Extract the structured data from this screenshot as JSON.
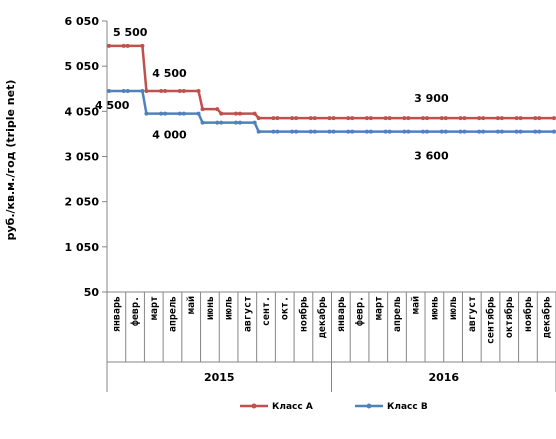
{
  "chart_data": {
    "type": "line",
    "ylabel": "руб./кв.м./год (triple net)",
    "ylim": [
      50,
      6050
    ],
    "yticks": [
      "6 050",
      "5 050",
      "4 050",
      "3 050",
      "2 050",
      "1 050",
      "50"
    ],
    "yticks_values": [
      6050,
      5050,
      4050,
      3050,
      2050,
      1050,
      50
    ],
    "categories": [
      "январь",
      "февр.",
      "март",
      "апрель",
      "май",
      "июнь",
      "июль",
      "август",
      "сент.",
      "окт.",
      "ноябрь",
      "декабрь",
      "январь",
      "февр.",
      "март",
      "апрель",
      "май",
      "июнь",
      "июль",
      "август",
      "сентябрь",
      "октябрь",
      "ноябрь",
      "декабрь"
    ],
    "years": [
      {
        "label": "2015",
        "start": 0,
        "end": 11
      },
      {
        "label": "2016",
        "start": 12,
        "end": 23
      }
    ],
    "series": [
      {
        "name": "Класс А",
        "color": "#c0504d",
        "values": [
          5500,
          5500,
          4500,
          4500,
          4500,
          4100,
          4000,
          4000,
          3900,
          3900,
          3900,
          3900,
          3900,
          3900,
          3900,
          3900,
          3900,
          3900,
          3900,
          3900,
          3900,
          3900,
          3900,
          3900
        ]
      },
      {
        "name": "Класс В",
        "color": "#4f81bd",
        "values": [
          4500,
          4500,
          4000,
          4000,
          4000,
          3800,
          3800,
          3800,
          3600,
          3600,
          3600,
          3600,
          3600,
          3600,
          3600,
          3600,
          3600,
          3600,
          3600,
          3600,
          3600,
          3600,
          3600,
          3600
        ]
      }
    ],
    "data_labels": [
      {
        "series": 0,
        "index": 0,
        "text": "5 500"
      },
      {
        "series": 0,
        "index": 3,
        "text": "4 500"
      },
      {
        "series": 0,
        "index": 17,
        "text": "3 900"
      },
      {
        "series": 1,
        "index": 0,
        "text": "4 500"
      },
      {
        "series": 1,
        "index": 3,
        "text": "4 000"
      },
      {
        "series": 1,
        "index": 17,
        "text": "3 600"
      }
    ],
    "legend_position": "bottom",
    "grid": false
  }
}
